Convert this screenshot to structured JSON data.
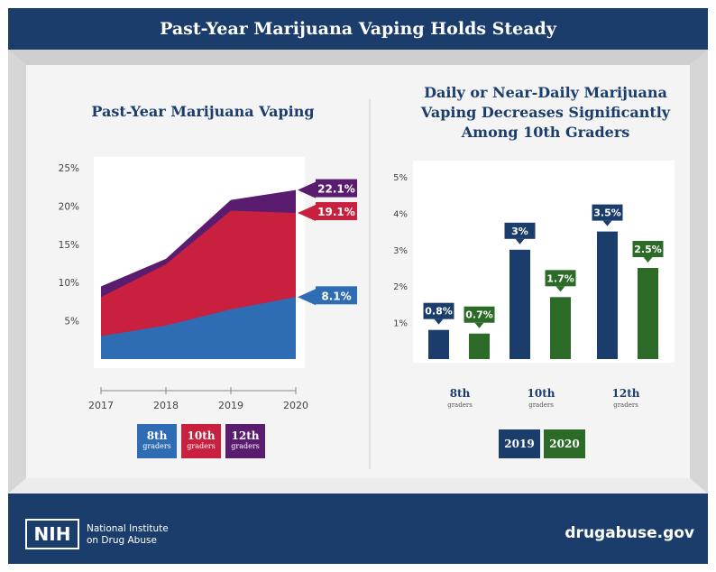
{
  "header": {
    "title": "Past-Year Marijuana Vaping Holds Steady"
  },
  "footer": {
    "nih_logo_text": "NIH",
    "nih_name_line1": "National Institute",
    "nih_name_line2": "on Drug Abuse",
    "site": "drugabuse.gov"
  },
  "colors": {
    "navy": "#1b3d6b",
    "blue": "#2e6db3",
    "red": "#c8203e",
    "purple": "#5a1c6e",
    "green": "#2b6b27",
    "dark_navy": "#1b3d6b"
  },
  "chart_data": [
    {
      "type": "area",
      "title": "Past-Year Marijuana Vaping",
      "x": [
        "2017",
        "2018",
        "2019",
        "2020"
      ],
      "ylim": [
        0,
        25
      ],
      "yticks": [
        "5%",
        "10%",
        "15%",
        "20%",
        "25%"
      ],
      "series": [
        {
          "name": "8th",
          "sublabel": "graders",
          "values": [
            3,
            4.4,
            6.5,
            8.1
          ],
          "end_label": "8.1%"
        },
        {
          "name": "10th",
          "sublabel": "graders",
          "values": [
            8.1,
            12.4,
            19.4,
            19.1
          ],
          "end_label": "19.1%"
        },
        {
          "name": "12th",
          "sublabel": "graders",
          "values": [
            9.5,
            13.1,
            20.8,
            22.1
          ],
          "end_label": "22.1%"
        }
      ]
    },
    {
      "type": "bar",
      "title_lines": [
        "Daily or Near-Daily Marijuana",
        "Vaping Decreases Significantly",
        "Among 10th Graders"
      ],
      "categories": [
        "8th",
        "10th",
        "12th"
      ],
      "category_sub": "graders",
      "ylim": [
        0,
        5
      ],
      "yticks": [
        "1%",
        "2%",
        "3%",
        "4%",
        "5%"
      ],
      "series": [
        {
          "name": "2019",
          "values": [
            0.8,
            3,
            3.5
          ],
          "labels": [
            "0.8%",
            "3%",
            "3.5%"
          ]
        },
        {
          "name": "2020",
          "values": [
            0.7,
            1.7,
            2.5
          ],
          "labels": [
            "0.7%",
            "1.7%",
            "2.5%"
          ]
        }
      ]
    }
  ]
}
